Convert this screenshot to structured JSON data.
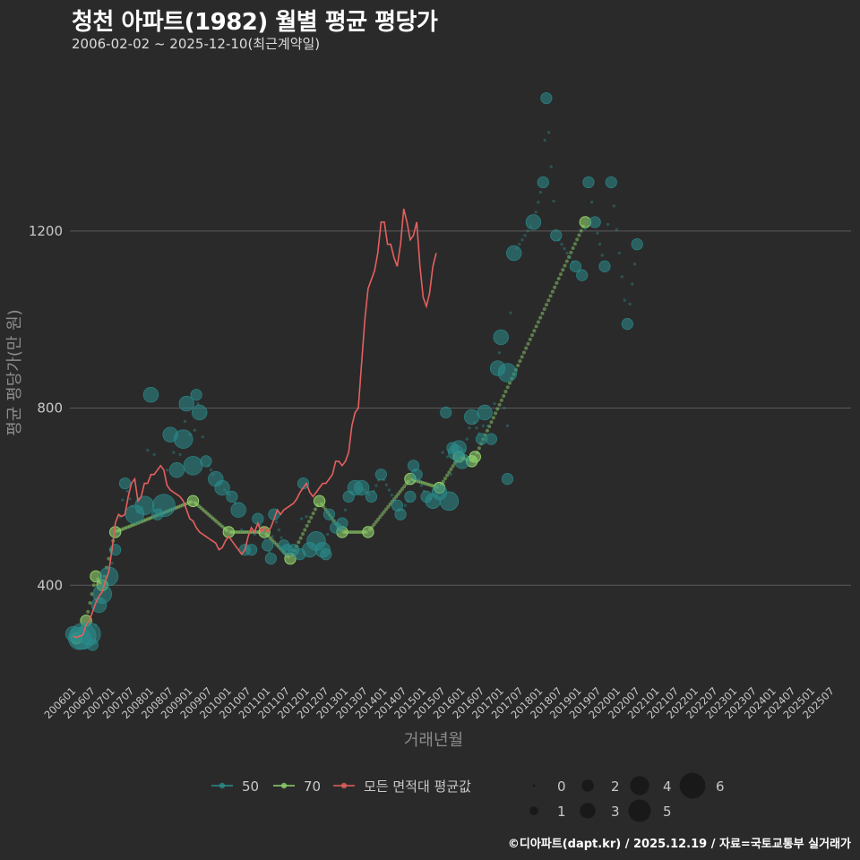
{
  "header": {
    "title": "청천 아파트(1982) 월별 평균 평당가",
    "subtitle": "2006-02-02 ~ 2025-12-10(최근계약일)"
  },
  "footer": {
    "credit": "©디아파트(dapt.kr) / 2025.12.19 / 자료=국토교통부 실거래가"
  },
  "colors": {
    "background": "#2b2a2b",
    "grid": "#5a5a5a",
    "s50": "#2a8c8c",
    "s70": "#8fd16a",
    "avg": "#e4605e"
  },
  "chart_data": {
    "type": "scatter",
    "title": "청천 아파트(1982) 월별 평균 평당가",
    "xlabel": "거래년월",
    "ylabel": "평균 평당가(만 원)",
    "ylim": [
      180,
      1580
    ],
    "yticks": [
      400,
      800,
      1200
    ],
    "xlim": [
      0,
      241
    ],
    "xtick_labels": [
      "200601",
      "200607",
      "200701",
      "200707",
      "200801",
      "200807",
      "200901",
      "200907",
      "201001",
      "201007",
      "201101",
      "201107",
      "201201",
      "201207",
      "201301",
      "201307",
      "201401",
      "201407",
      "201501",
      "201507",
      "201601",
      "201607",
      "201701",
      "201707",
      "201801",
      "201807",
      "201901",
      "201907",
      "202001",
      "202007",
      "202101",
      "202107",
      "202201",
      "202207",
      "202301",
      "202307",
      "202401",
      "202407",
      "202501",
      "202507"
    ],
    "legend": {
      "series_title": [
        "50",
        "70",
        "모든 면적대 평균값"
      ],
      "size_labels": [
        "0",
        "1",
        "2",
        "3",
        "4",
        "5",
        "6"
      ]
    },
    "series": [
      {
        "name": "50",
        "points": [
          [
            1,
            290,
            3
          ],
          [
            3,
            280,
            5
          ],
          [
            4,
            285,
            6
          ],
          [
            6,
            290,
            5
          ],
          [
            7,
            265,
            2
          ],
          [
            9,
            355,
            3
          ],
          [
            10,
            380,
            4
          ],
          [
            12,
            420,
            4
          ],
          [
            14,
            480,
            2
          ],
          [
            17,
            630,
            2
          ],
          [
            20,
            560,
            4
          ],
          [
            23,
            580,
            4
          ],
          [
            25,
            830,
            3
          ],
          [
            27,
            560,
            2
          ],
          [
            29,
            580,
            5
          ],
          [
            31,
            740,
            3
          ],
          [
            33,
            660,
            3
          ],
          [
            35,
            730,
            4
          ],
          [
            36,
            810,
            3
          ],
          [
            38,
            670,
            4
          ],
          [
            39,
            830,
            2
          ],
          [
            40,
            790,
            3
          ],
          [
            42,
            680,
            2
          ],
          [
            45,
            640,
            3
          ],
          [
            47,
            620,
            3
          ],
          [
            50,
            600,
            2
          ],
          [
            52,
            570,
            3
          ],
          [
            54,
            480,
            2
          ],
          [
            56,
            480,
            2
          ],
          [
            58,
            550,
            2
          ],
          [
            61,
            490,
            2
          ],
          [
            62,
            460,
            2
          ],
          [
            63,
            560,
            2
          ],
          [
            66,
            490,
            2
          ],
          [
            67,
            480,
            2
          ],
          [
            69,
            480,
            2
          ],
          [
            71,
            470,
            2
          ],
          [
            72,
            630,
            2
          ],
          [
            74,
            480,
            3
          ],
          [
            76,
            500,
            4
          ],
          [
            78,
            480,
            3
          ],
          [
            79,
            470,
            2
          ],
          [
            80,
            560,
            2
          ],
          [
            82,
            530,
            2
          ],
          [
            84,
            540,
            2
          ],
          [
            86,
            600,
            2
          ],
          [
            88,
            620,
            3
          ],
          [
            90,
            620,
            3
          ],
          [
            93,
            600,
            2
          ],
          [
            96,
            650,
            2
          ],
          [
            101,
            580,
            2
          ],
          [
            102,
            560,
            2
          ],
          [
            105,
            600,
            2
          ],
          [
            106,
            670,
            2
          ],
          [
            107,
            650,
            2
          ],
          [
            110,
            600,
            2
          ],
          [
            112,
            590,
            3
          ],
          [
            114,
            610,
            3
          ],
          [
            116,
            790,
            2
          ],
          [
            117,
            590,
            4
          ],
          [
            118,
            710,
            2
          ],
          [
            119,
            700,
            3
          ],
          [
            120,
            710,
            3
          ],
          [
            121,
            680,
            3
          ],
          [
            124,
            780,
            3
          ],
          [
            127,
            730,
            2
          ],
          [
            128,
            790,
            3
          ],
          [
            130,
            730,
            2
          ],
          [
            132,
            890,
            3
          ],
          [
            133,
            960,
            3
          ],
          [
            135,
            640,
            2
          ],
          [
            135,
            880,
            4
          ],
          [
            137,
            1150,
            3
          ],
          [
            143,
            1220,
            3
          ],
          [
            146,
            1310,
            2
          ],
          [
            147,
            1500,
            2
          ],
          [
            150,
            1190,
            2
          ],
          [
            156,
            1120,
            2
          ],
          [
            158,
            1100,
            2
          ],
          [
            160,
            1310,
            2
          ],
          [
            162,
            1220,
            2
          ],
          [
            165,
            1120,
            2
          ],
          [
            167,
            1310,
            2
          ],
          [
            172,
            990,
            2
          ],
          [
            175,
            1170,
            2
          ]
        ]
      },
      {
        "name": "70",
        "points": [
          [
            2,
            280,
            2
          ],
          [
            5,
            320,
            2
          ],
          [
            8,
            420,
            2
          ],
          [
            10,
            400,
            2
          ],
          [
            14,
            520,
            2
          ],
          [
            38,
            590,
            2
          ],
          [
            49,
            520,
            2
          ],
          [
            60,
            520,
            2
          ],
          [
            68,
            460,
            2
          ],
          [
            77,
            590,
            2
          ],
          [
            84,
            520,
            2
          ],
          [
            92,
            520,
            2
          ],
          [
            105,
            640,
            2
          ],
          [
            114,
            620,
            2
          ],
          [
            120,
            690,
            2
          ],
          [
            124,
            680,
            2
          ],
          [
            125,
            690,
            2
          ],
          [
            159,
            1220,
            2
          ]
        ]
      },
      {
        "name": "모든 면적대 평균값",
        "points": [
          [
            1,
            285
          ],
          [
            2,
            282
          ],
          [
            4,
            288
          ],
          [
            5,
            310
          ],
          [
            6,
            320
          ],
          [
            7,
            340
          ],
          [
            8,
            360
          ],
          [
            9,
            375
          ],
          [
            10,
            385
          ],
          [
            11,
            410
          ],
          [
            12,
            430
          ],
          [
            13,
            480
          ],
          [
            14,
            540
          ],
          [
            15,
            560
          ],
          [
            16,
            555
          ],
          [
            17,
            560
          ],
          [
            18,
            600
          ],
          [
            19,
            630
          ],
          [
            20,
            640
          ],
          [
            21,
            590
          ],
          [
            22,
            600
          ],
          [
            23,
            630
          ],
          [
            24,
            630
          ],
          [
            25,
            650
          ],
          [
            26,
            650
          ],
          [
            27,
            660
          ],
          [
            28,
            670
          ],
          [
            29,
            660
          ],
          [
            30,
            625
          ],
          [
            31,
            615
          ],
          [
            32,
            610
          ],
          [
            33,
            605
          ],
          [
            34,
            600
          ],
          [
            35,
            590
          ],
          [
            36,
            570
          ],
          [
            37,
            550
          ],
          [
            38,
            545
          ],
          [
            39,
            530
          ],
          [
            40,
            520
          ],
          [
            41,
            515
          ],
          [
            42,
            510
          ],
          [
            43,
            505
          ],
          [
            44,
            500
          ],
          [
            45,
            495
          ],
          [
            46,
            480
          ],
          [
            47,
            485
          ],
          [
            48,
            500
          ],
          [
            49,
            510
          ],
          [
            50,
            500
          ],
          [
            51,
            490
          ],
          [
            52,
            480
          ],
          [
            53,
            470
          ],
          [
            54,
            480
          ],
          [
            55,
            510
          ],
          [
            56,
            530
          ],
          [
            57,
            520
          ],
          [
            58,
            540
          ],
          [
            59,
            520
          ],
          [
            60,
            530
          ],
          [
            61,
            520
          ],
          [
            62,
            530
          ],
          [
            63,
            550
          ],
          [
            64,
            570
          ],
          [
            65,
            560
          ],
          [
            66,
            570
          ],
          [
            67,
            575
          ],
          [
            68,
            580
          ],
          [
            69,
            585
          ],
          [
            70,
            595
          ],
          [
            71,
            610
          ],
          [
            72,
            620
          ],
          [
            73,
            630
          ],
          [
            74,
            610
          ],
          [
            75,
            600
          ],
          [
            76,
            610
          ],
          [
            77,
            620
          ],
          [
            78,
            630
          ],
          [
            79,
            630
          ],
          [
            80,
            640
          ],
          [
            81,
            650
          ],
          [
            82,
            680
          ],
          [
            83,
            680
          ],
          [
            84,
            670
          ],
          [
            85,
            680
          ],
          [
            86,
            700
          ],
          [
            87,
            760
          ],
          [
            88,
            790
          ],
          [
            89,
            800
          ],
          [
            90,
            900
          ],
          [
            91,
            1000
          ],
          [
            92,
            1070
          ],
          [
            93,
            1090
          ],
          [
            94,
            1110
          ],
          [
            95,
            1150
          ],
          [
            96,
            1220
          ],
          [
            97,
            1220
          ],
          [
            98,
            1170
          ],
          [
            99,
            1170
          ],
          [
            100,
            1140
          ],
          [
            101,
            1120
          ],
          [
            102,
            1170
          ],
          [
            103,
            1250
          ],
          [
            104,
            1220
          ],
          [
            105,
            1180
          ],
          [
            106,
            1190
          ],
          [
            107,
            1220
          ],
          [
            108,
            1120
          ],
          [
            109,
            1050
          ],
          [
            110,
            1030
          ],
          [
            111,
            1060
          ],
          [
            112,
            1120
          ],
          [
            113,
            1150
          ]
        ]
      }
    ]
  }
}
